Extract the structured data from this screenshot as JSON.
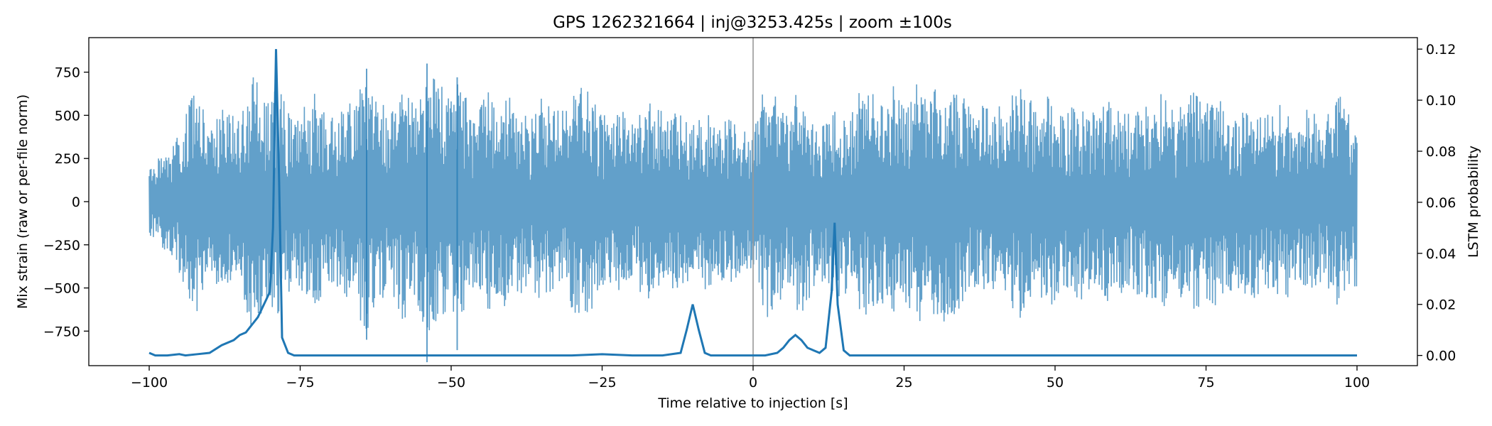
{
  "chart_data": {
    "type": "line",
    "title": "GPS 1262321664 | inj@3253.425s | zoom ±100s",
    "xlabel": "Time relative to injection [s]",
    "ylabel_left": "Mix strain (raw or per-file norm)",
    "ylabel_right": "LSTM probability",
    "xlim": [
      -110,
      110
    ],
    "ylim_left": [
      -950,
      950
    ],
    "ylim_right": [
      -0.004,
      0.1245
    ],
    "x_ticks": [
      -100,
      -75,
      -50,
      -25,
      0,
      25,
      50,
      75,
      100
    ],
    "x_tick_labels": [
      "−100",
      "−75",
      "−50",
      "−25",
      "0",
      "25",
      "50",
      "75",
      "100"
    ],
    "y_left_ticks": [
      750,
      500,
      250,
      0,
      -250,
      -500,
      -750
    ],
    "y_left_tick_labels": [
      "750",
      "500",
      "250",
      "0",
      "−250",
      "−500",
      "−750"
    ],
    "y_right_ticks": [
      0.12,
      0.1,
      0.08,
      0.06,
      0.04,
      0.02,
      0.0
    ],
    "y_right_tick_labels": [
      "0.12",
      "0.10",
      "0.08",
      "0.06",
      "0.04",
      "0.02",
      "0.00"
    ],
    "injection_marker_x": 0,
    "colors": {
      "strain": "#1f77b4",
      "probability": "#1f77b4",
      "marker": "#999999"
    },
    "series": [
      {
        "axis": "left",
        "x_range": [
          -100,
          100
        ],
        "envelope": [
          [
            -100,
            230
          ],
          [
            -98,
            260
          ],
          [
            -95,
            420
          ],
          [
            -93,
            600
          ],
          [
            -92,
            650
          ],
          [
            -90,
            450
          ],
          [
            -88,
            550
          ],
          [
            -85,
            480
          ],
          [
            -83,
            760
          ],
          [
            -80,
            560
          ],
          [
            -79,
            720
          ],
          [
            -76,
            450
          ],
          [
            -73,
            650
          ],
          [
            -70,
            480
          ],
          [
            -67,
            560
          ],
          [
            -64,
            770
          ],
          [
            -62,
            600
          ],
          [
            -60,
            500
          ],
          [
            -58,
            700
          ],
          [
            -56,
            550
          ],
          [
            -54,
            780
          ],
          [
            -51,
            650
          ],
          [
            -49,
            720
          ],
          [
            -46,
            500
          ],
          [
            -44,
            640
          ],
          [
            -42,
            550
          ],
          [
            -40,
            690
          ],
          [
            -37,
            450
          ],
          [
            -35,
            620
          ],
          [
            -32,
            530
          ],
          [
            -29,
            700
          ],
          [
            -26,
            600
          ],
          [
            -24,
            460
          ],
          [
            -22,
            580
          ],
          [
            -20,
            470
          ],
          [
            -17,
            600
          ],
          [
            -15,
            520
          ],
          [
            -12,
            510
          ],
          [
            -10,
            450
          ],
          [
            -8,
            530
          ],
          [
            -6,
            440
          ],
          [
            -4,
            480
          ],
          [
            -2,
            420
          ],
          [
            0,
            380
          ],
          [
            1,
            560
          ],
          [
            2,
            690
          ],
          [
            4,
            600
          ],
          [
            6,
            570
          ],
          [
            8,
            680
          ],
          [
            10,
            520
          ],
          [
            12,
            450
          ],
          [
            14,
            570
          ],
          [
            16,
            520
          ],
          [
            18,
            690
          ],
          [
            21,
            600
          ],
          [
            23,
            700
          ],
          [
            25,
            560
          ],
          [
            27,
            740
          ],
          [
            30,
            650
          ],
          [
            32,
            720
          ],
          [
            34,
            650
          ],
          [
            37,
            500
          ],
          [
            39,
            610
          ],
          [
            42,
            560
          ],
          [
            44,
            690
          ],
          [
            47,
            550
          ],
          [
            49,
            630
          ],
          [
            51,
            520
          ],
          [
            54,
            600
          ],
          [
            57,
            500
          ],
          [
            59,
            610
          ],
          [
            62,
            520
          ],
          [
            65,
            560
          ],
          [
            68,
            650
          ],
          [
            70,
            520
          ],
          [
            73,
            640
          ],
          [
            75,
            580
          ],
          [
            78,
            620
          ],
          [
            80,
            520
          ],
          [
            83,
            560
          ],
          [
            86,
            500
          ],
          [
            88,
            600
          ],
          [
            90,
            460
          ],
          [
            92,
            550
          ],
          [
            94,
            470
          ],
          [
            96,
            560
          ],
          [
            97,
            640
          ],
          [
            98,
            520
          ],
          [
            100,
            520
          ]
        ]
      },
      {
        "axis": "right",
        "x": [
          -100,
          -99,
          -97,
          -95,
          -94,
          -92,
          -90,
          -88,
          -86,
          -85,
          -84,
          -82,
          -81,
          -80,
          -79.5,
          -79,
          -78.5,
          -78,
          -77,
          -76,
          -75,
          -70,
          -60,
          -50,
          -40,
          -30,
          -25,
          -20,
          -15,
          -12,
          -11,
          -10,
          -9,
          -8,
          -7,
          -5,
          -2,
          0,
          2,
          4,
          5,
          6,
          7,
          8,
          9,
          11,
          12,
          13,
          13.5,
          14,
          15,
          16,
          17,
          20,
          30,
          50,
          75,
          100
        ],
        "y": [
          0.001,
          0.0,
          0.0,
          0.0005,
          0.0,
          0.0005,
          0.001,
          0.004,
          0.006,
          0.008,
          0.009,
          0.015,
          0.02,
          0.025,
          0.05,
          0.12,
          0.07,
          0.007,
          0.001,
          0.0,
          0.0,
          0.0,
          0.0,
          0.0,
          0.0,
          0.0,
          0.0005,
          0.0,
          0.0,
          0.001,
          0.01,
          0.02,
          0.01,
          0.001,
          0.0,
          0.0,
          0.0,
          0.0,
          0.0,
          0.001,
          0.003,
          0.006,
          0.008,
          0.006,
          0.003,
          0.001,
          0.003,
          0.025,
          0.052,
          0.02,
          0.002,
          0.0,
          0.0,
          0.0,
          0.0,
          0.0,
          0.0,
          0.0
        ]
      }
    ]
  }
}
